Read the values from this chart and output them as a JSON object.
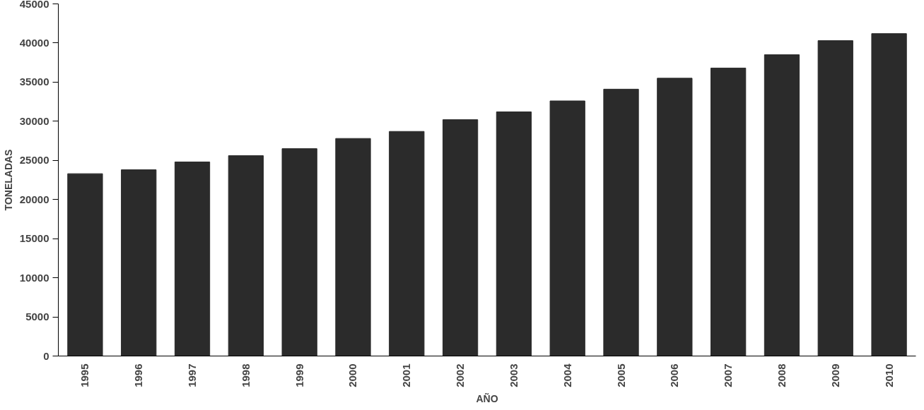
{
  "chart_data": {
    "type": "bar",
    "xlabel": "AÑO",
    "ylabel": "TONELADAS",
    "categories": [
      "1995",
      "1996",
      "1997",
      "1998",
      "1999",
      "2000",
      "2001",
      "2002",
      "2003",
      "2004",
      "2005",
      "2006",
      "2007",
      "2008",
      "2009",
      "2010"
    ],
    "values": [
      23300,
      23800,
      24800,
      25600,
      26500,
      27800,
      28700,
      30200,
      31200,
      32600,
      34100,
      35500,
      36800,
      38500,
      40300,
      41200
    ],
    "color": "#2b2b2b",
    "ylim": [
      0,
      45000
    ],
    "yticks": [
      0,
      5000,
      10000,
      15000,
      20000,
      25000,
      30000,
      35000,
      40000,
      45000
    ],
    "grid": false
  }
}
